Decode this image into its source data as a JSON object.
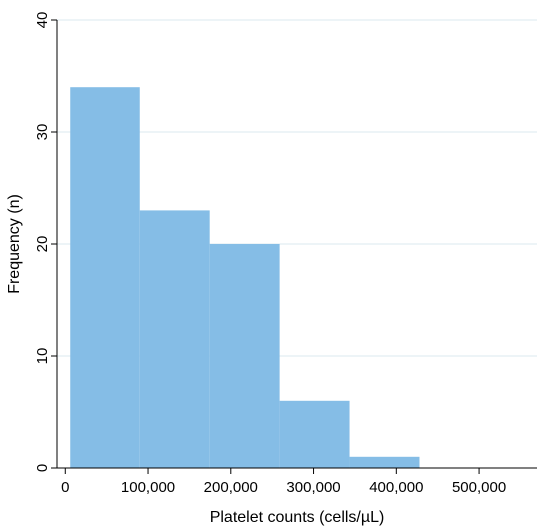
{
  "chart_data": {
    "type": "bar",
    "subtype": "histogram",
    "title": "",
    "xlabel": "Platelet counts (cells/µL)",
    "ylabel": "Frequency (n)",
    "bins": [
      {
        "x0": 6000,
        "x1": 90000,
        "count": 34
      },
      {
        "x0": 90000,
        "x1": 174500,
        "count": 23
      },
      {
        "x0": 174500,
        "x1": 259000,
        "count": 20
      },
      {
        "x0": 259000,
        "x1": 343500,
        "count": 6
      },
      {
        "x0": 343500,
        "x1": 428000,
        "count": 1
      }
    ],
    "xlim": [
      -10000,
      570000
    ],
    "ylim": [
      0,
      40
    ],
    "xticks": [
      0,
      100000,
      200000,
      300000,
      400000,
      500000
    ],
    "xtick_labels": [
      "0",
      "100,000",
      "200,000",
      "300,000",
      "400,000",
      "500,000"
    ],
    "yticks": [
      0,
      10,
      20,
      30,
      40
    ],
    "ytick_labels": [
      "0",
      "10",
      "20",
      "30",
      "40"
    ],
    "grid": "horizontal",
    "legend": "none",
    "colors": {
      "bar_fill": "#85bde6",
      "grid": "#dbe8ef",
      "axis": "#000000",
      "background": "#ffffff"
    }
  }
}
